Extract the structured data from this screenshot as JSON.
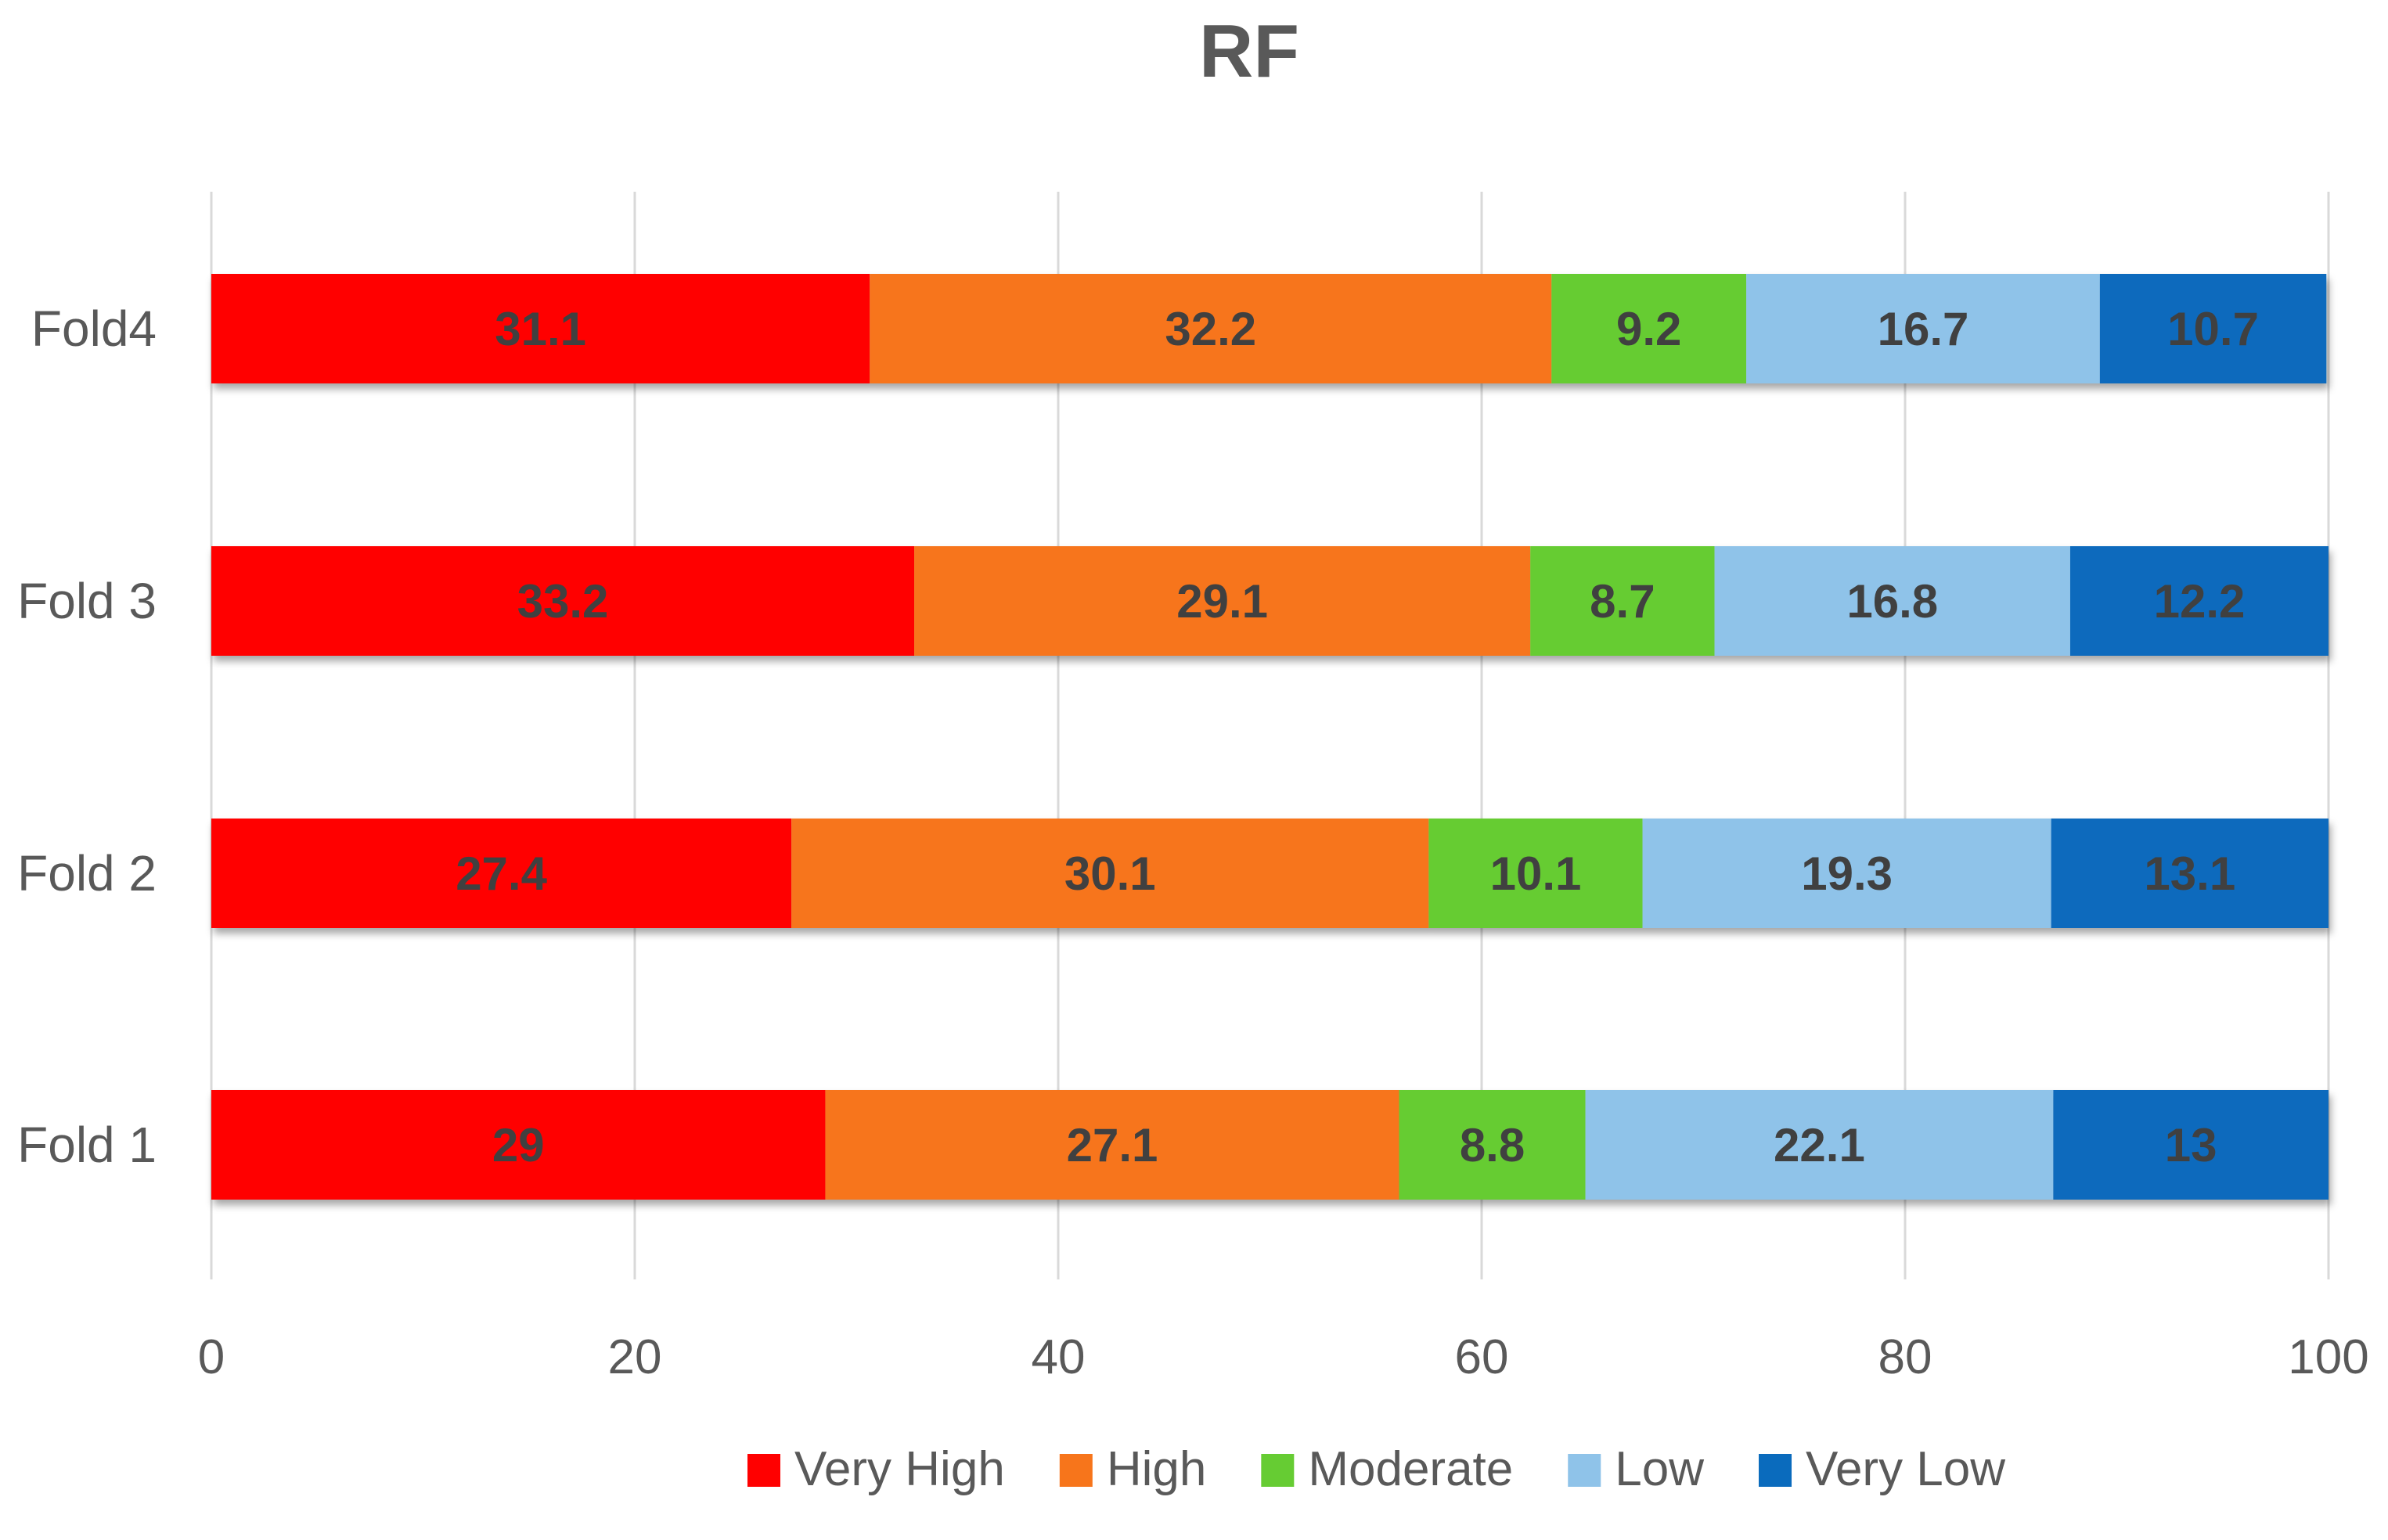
{
  "chart_data": {
    "type": "bar",
    "orientation": "horizontal",
    "stacked": true,
    "title": "RF",
    "xlabel": "",
    "ylabel": "",
    "xlim": [
      0,
      100
    ],
    "xticks": [
      0,
      20,
      40,
      60,
      80,
      100
    ],
    "grid": "vertical",
    "legend": "bottom",
    "categories": [
      "Fold 1",
      "Fold 2",
      "Fold 3",
      "Fold4"
    ],
    "series": [
      {
        "name": "Very High",
        "color": "#ff0000",
        "values": [
          29,
          27.4,
          33.2,
          31.1
        ]
      },
      {
        "name": "High",
        "color": "#f7751b",
        "values": [
          27.1,
          30.1,
          29.1,
          32.2
        ]
      },
      {
        "name": "Moderate",
        "color": "#66cc33",
        "values": [
          8.8,
          10.1,
          8.7,
          9.2
        ]
      },
      {
        "name": "Low",
        "color": "#8fc3e9",
        "values": [
          22.1,
          19.3,
          16.8,
          16.7
        ]
      },
      {
        "name": "Very Low",
        "color": "#0a6bbd",
        "values": [
          13,
          13.1,
          12.2,
          10.7
        ]
      }
    ]
  }
}
